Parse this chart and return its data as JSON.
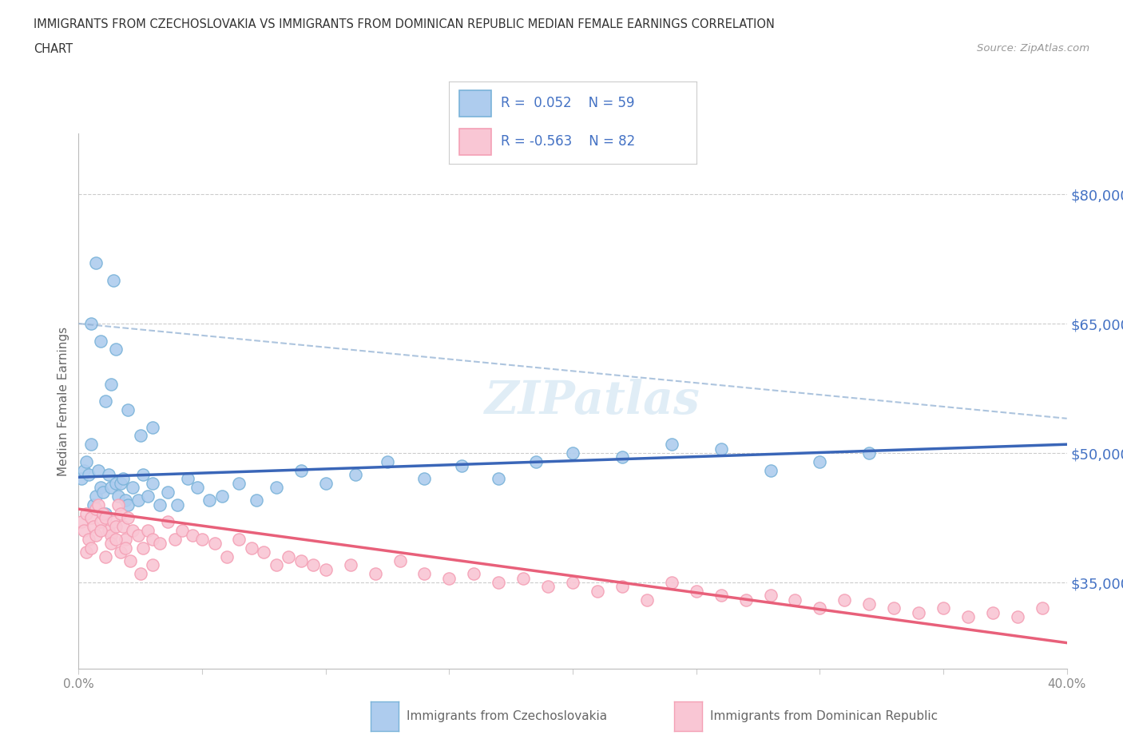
{
  "title_line1": "IMMIGRANTS FROM CZECHOSLOVAKIA VS IMMIGRANTS FROM DOMINICAN REPUBLIC MEDIAN FEMALE EARNINGS CORRELATION",
  "title_line2": "CHART",
  "source": "Source: ZipAtlas.com",
  "ylabel": "Median Female Earnings",
  "xmin": 0.0,
  "xmax": 0.4,
  "ymin": 25000,
  "ymax": 87000,
  "yticks": [
    35000,
    50000,
    65000,
    80000
  ],
  "ytick_labels": [
    "$35,000",
    "$50,000",
    "$65,000",
    "$80,000"
  ],
  "xticks": [
    0.0,
    0.05,
    0.1,
    0.15,
    0.2,
    0.25,
    0.3,
    0.35,
    0.4
  ],
  "xtick_labels": [
    "0.0%",
    "",
    "",
    "",
    "",
    "",
    "",
    "",
    "40.0%"
  ],
  "legend_r1": "R =  0.052",
  "legend_n1": "N = 59",
  "legend_r2": "R = -0.563",
  "legend_n2": "N = 82",
  "color_czech": "#7ab3d9",
  "color_czech_fill": "#aeccee",
  "color_dr": "#f4a0b5",
  "color_dr_fill": "#f9c6d4",
  "color_trend_czech": "#3a66b8",
  "color_trend_dr": "#e8607a",
  "color_dashed": "#8aacd0",
  "color_text_blue": "#4472c4",
  "color_axis_label": "#666666",
  "background_color": "#ffffff",
  "czech_x": [
    0.001,
    0.002,
    0.003,
    0.004,
    0.005,
    0.006,
    0.007,
    0.008,
    0.009,
    0.01,
    0.011,
    0.012,
    0.013,
    0.014,
    0.015,
    0.016,
    0.017,
    0.018,
    0.019,
    0.02,
    0.022,
    0.024,
    0.026,
    0.028,
    0.03,
    0.033,
    0.036,
    0.04,
    0.044,
    0.048,
    0.053,
    0.058,
    0.065,
    0.072,
    0.08,
    0.09,
    0.1,
    0.112,
    0.125,
    0.14,
    0.155,
    0.17,
    0.185,
    0.2,
    0.22,
    0.24,
    0.26,
    0.28,
    0.3,
    0.32,
    0.005,
    0.007,
    0.009,
    0.011,
    0.013,
    0.015,
    0.02,
    0.025,
    0.03
  ],
  "czech_y": [
    47000,
    48000,
    49000,
    47500,
    51000,
    44000,
    45000,
    48000,
    46000,
    45500,
    43000,
    47500,
    46000,
    70000,
    46500,
    45000,
    46500,
    47000,
    44500,
    44000,
    46000,
    44500,
    47500,
    45000,
    46500,
    44000,
    45500,
    44000,
    47000,
    46000,
    44500,
    45000,
    46500,
    44500,
    46000,
    48000,
    46500,
    47500,
    49000,
    47000,
    48500,
    47000,
    49000,
    50000,
    49500,
    51000,
    50500,
    48000,
    49000,
    50000,
    65000,
    72000,
    63000,
    56000,
    58000,
    62000,
    55000,
    52000,
    53000
  ],
  "dr_x": [
    0.001,
    0.002,
    0.003,
    0.004,
    0.005,
    0.006,
    0.007,
    0.008,
    0.009,
    0.01,
    0.011,
    0.012,
    0.013,
    0.014,
    0.015,
    0.016,
    0.017,
    0.018,
    0.019,
    0.02,
    0.022,
    0.024,
    0.026,
    0.028,
    0.03,
    0.033,
    0.036,
    0.039,
    0.042,
    0.046,
    0.05,
    0.055,
    0.06,
    0.065,
    0.07,
    0.075,
    0.08,
    0.085,
    0.09,
    0.095,
    0.1,
    0.11,
    0.12,
    0.13,
    0.14,
    0.15,
    0.16,
    0.17,
    0.18,
    0.19,
    0.2,
    0.21,
    0.22,
    0.23,
    0.24,
    0.25,
    0.26,
    0.27,
    0.28,
    0.29,
    0.3,
    0.31,
    0.32,
    0.33,
    0.34,
    0.35,
    0.36,
    0.37,
    0.38,
    0.39,
    0.003,
    0.005,
    0.007,
    0.009,
    0.011,
    0.013,
    0.015,
    0.017,
    0.019,
    0.021,
    0.025,
    0.03
  ],
  "dr_y": [
    42000,
    41000,
    43000,
    40000,
    42500,
    41500,
    43500,
    44000,
    42000,
    43000,
    42500,
    41000,
    40500,
    42000,
    41500,
    44000,
    43000,
    41500,
    40000,
    42500,
    41000,
    40500,
    39000,
    41000,
    40000,
    39500,
    42000,
    40000,
    41000,
    40500,
    40000,
    39500,
    38000,
    40000,
    39000,
    38500,
    37000,
    38000,
    37500,
    37000,
    36500,
    37000,
    36000,
    37500,
    36000,
    35500,
    36000,
    35000,
    35500,
    34500,
    35000,
    34000,
    34500,
    33000,
    35000,
    34000,
    33500,
    33000,
    33500,
    33000,
    32000,
    33000,
    32500,
    32000,
    31500,
    32000,
    31000,
    31500,
    31000,
    32000,
    38500,
    39000,
    40500,
    41000,
    38000,
    39500,
    40000,
    38500,
    39000,
    37500,
    36000,
    37000
  ]
}
